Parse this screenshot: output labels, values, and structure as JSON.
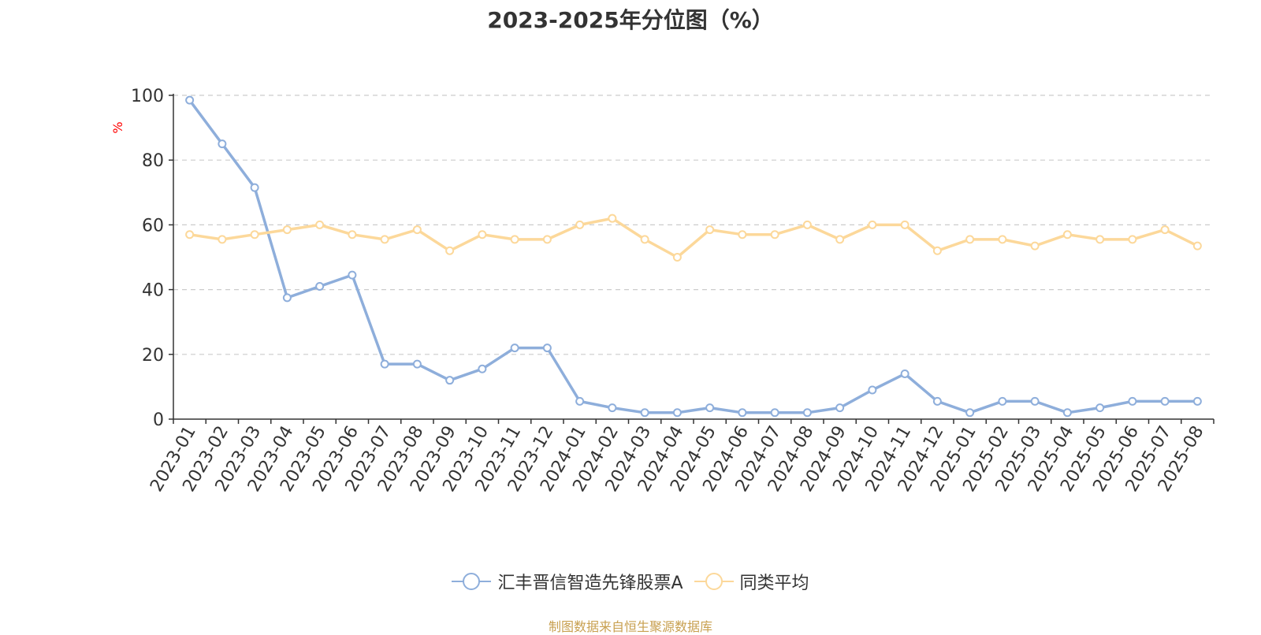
{
  "chart_data": {
    "type": "line",
    "title": "2023-2025年分位图（%）",
    "ylabel": "%",
    "xlabel": "",
    "ylim": [
      0,
      100
    ],
    "yticks": [
      0,
      20,
      40,
      60,
      80,
      100
    ],
    "grid": "horizontal dashed",
    "legend_position": "bottom-center",
    "categories": [
      "2023-01",
      "2023-02",
      "2023-03",
      "2023-04",
      "2023-05",
      "2023-06",
      "2023-07",
      "2023-08",
      "2023-09",
      "2023-10",
      "2023-11",
      "2023-12",
      "2024-01",
      "2024-02",
      "2024-03",
      "2024-04",
      "2024-05",
      "2024-06",
      "2024-07",
      "2024-08",
      "2024-09",
      "2024-10",
      "2024-11",
      "2024-12",
      "2025-01",
      "2025-02",
      "2025-03",
      "2025-04",
      "2025-05",
      "2025-06",
      "2025-07",
      "2025-08"
    ],
    "series": [
      {
        "name": "汇丰晋信智造先锋股票A",
        "color": "#8eaedb",
        "values": [
          98.5,
          85,
          71.5,
          37.5,
          41,
          44.5,
          17,
          17,
          12,
          15.5,
          22,
          22,
          5.5,
          3.5,
          2,
          2,
          3.5,
          2,
          2,
          2,
          3.5,
          9,
          14,
          5.5,
          2,
          5.5,
          5.5,
          2,
          3.5,
          5.5,
          5.5,
          5.5
        ]
      },
      {
        "name": "同类平均",
        "color": "#fcd89a",
        "values": [
          57,
          55.5,
          57,
          58.5,
          60,
          57,
          55.5,
          58.5,
          52,
          57,
          55.5,
          55.5,
          60,
          62,
          55.5,
          50,
          58.5,
          57,
          57,
          60,
          55.5,
          60,
          60,
          52,
          55.5,
          55.5,
          53.5,
          57,
          55.5,
          55.5,
          58.5,
          53.5
        ]
      }
    ]
  },
  "source_text": "制图数据来自恒生聚源数据库",
  "colors": {
    "axis": "#333333",
    "grid": "#cccccc",
    "ylabel": "#ff0000",
    "source": "#c8a050"
  }
}
